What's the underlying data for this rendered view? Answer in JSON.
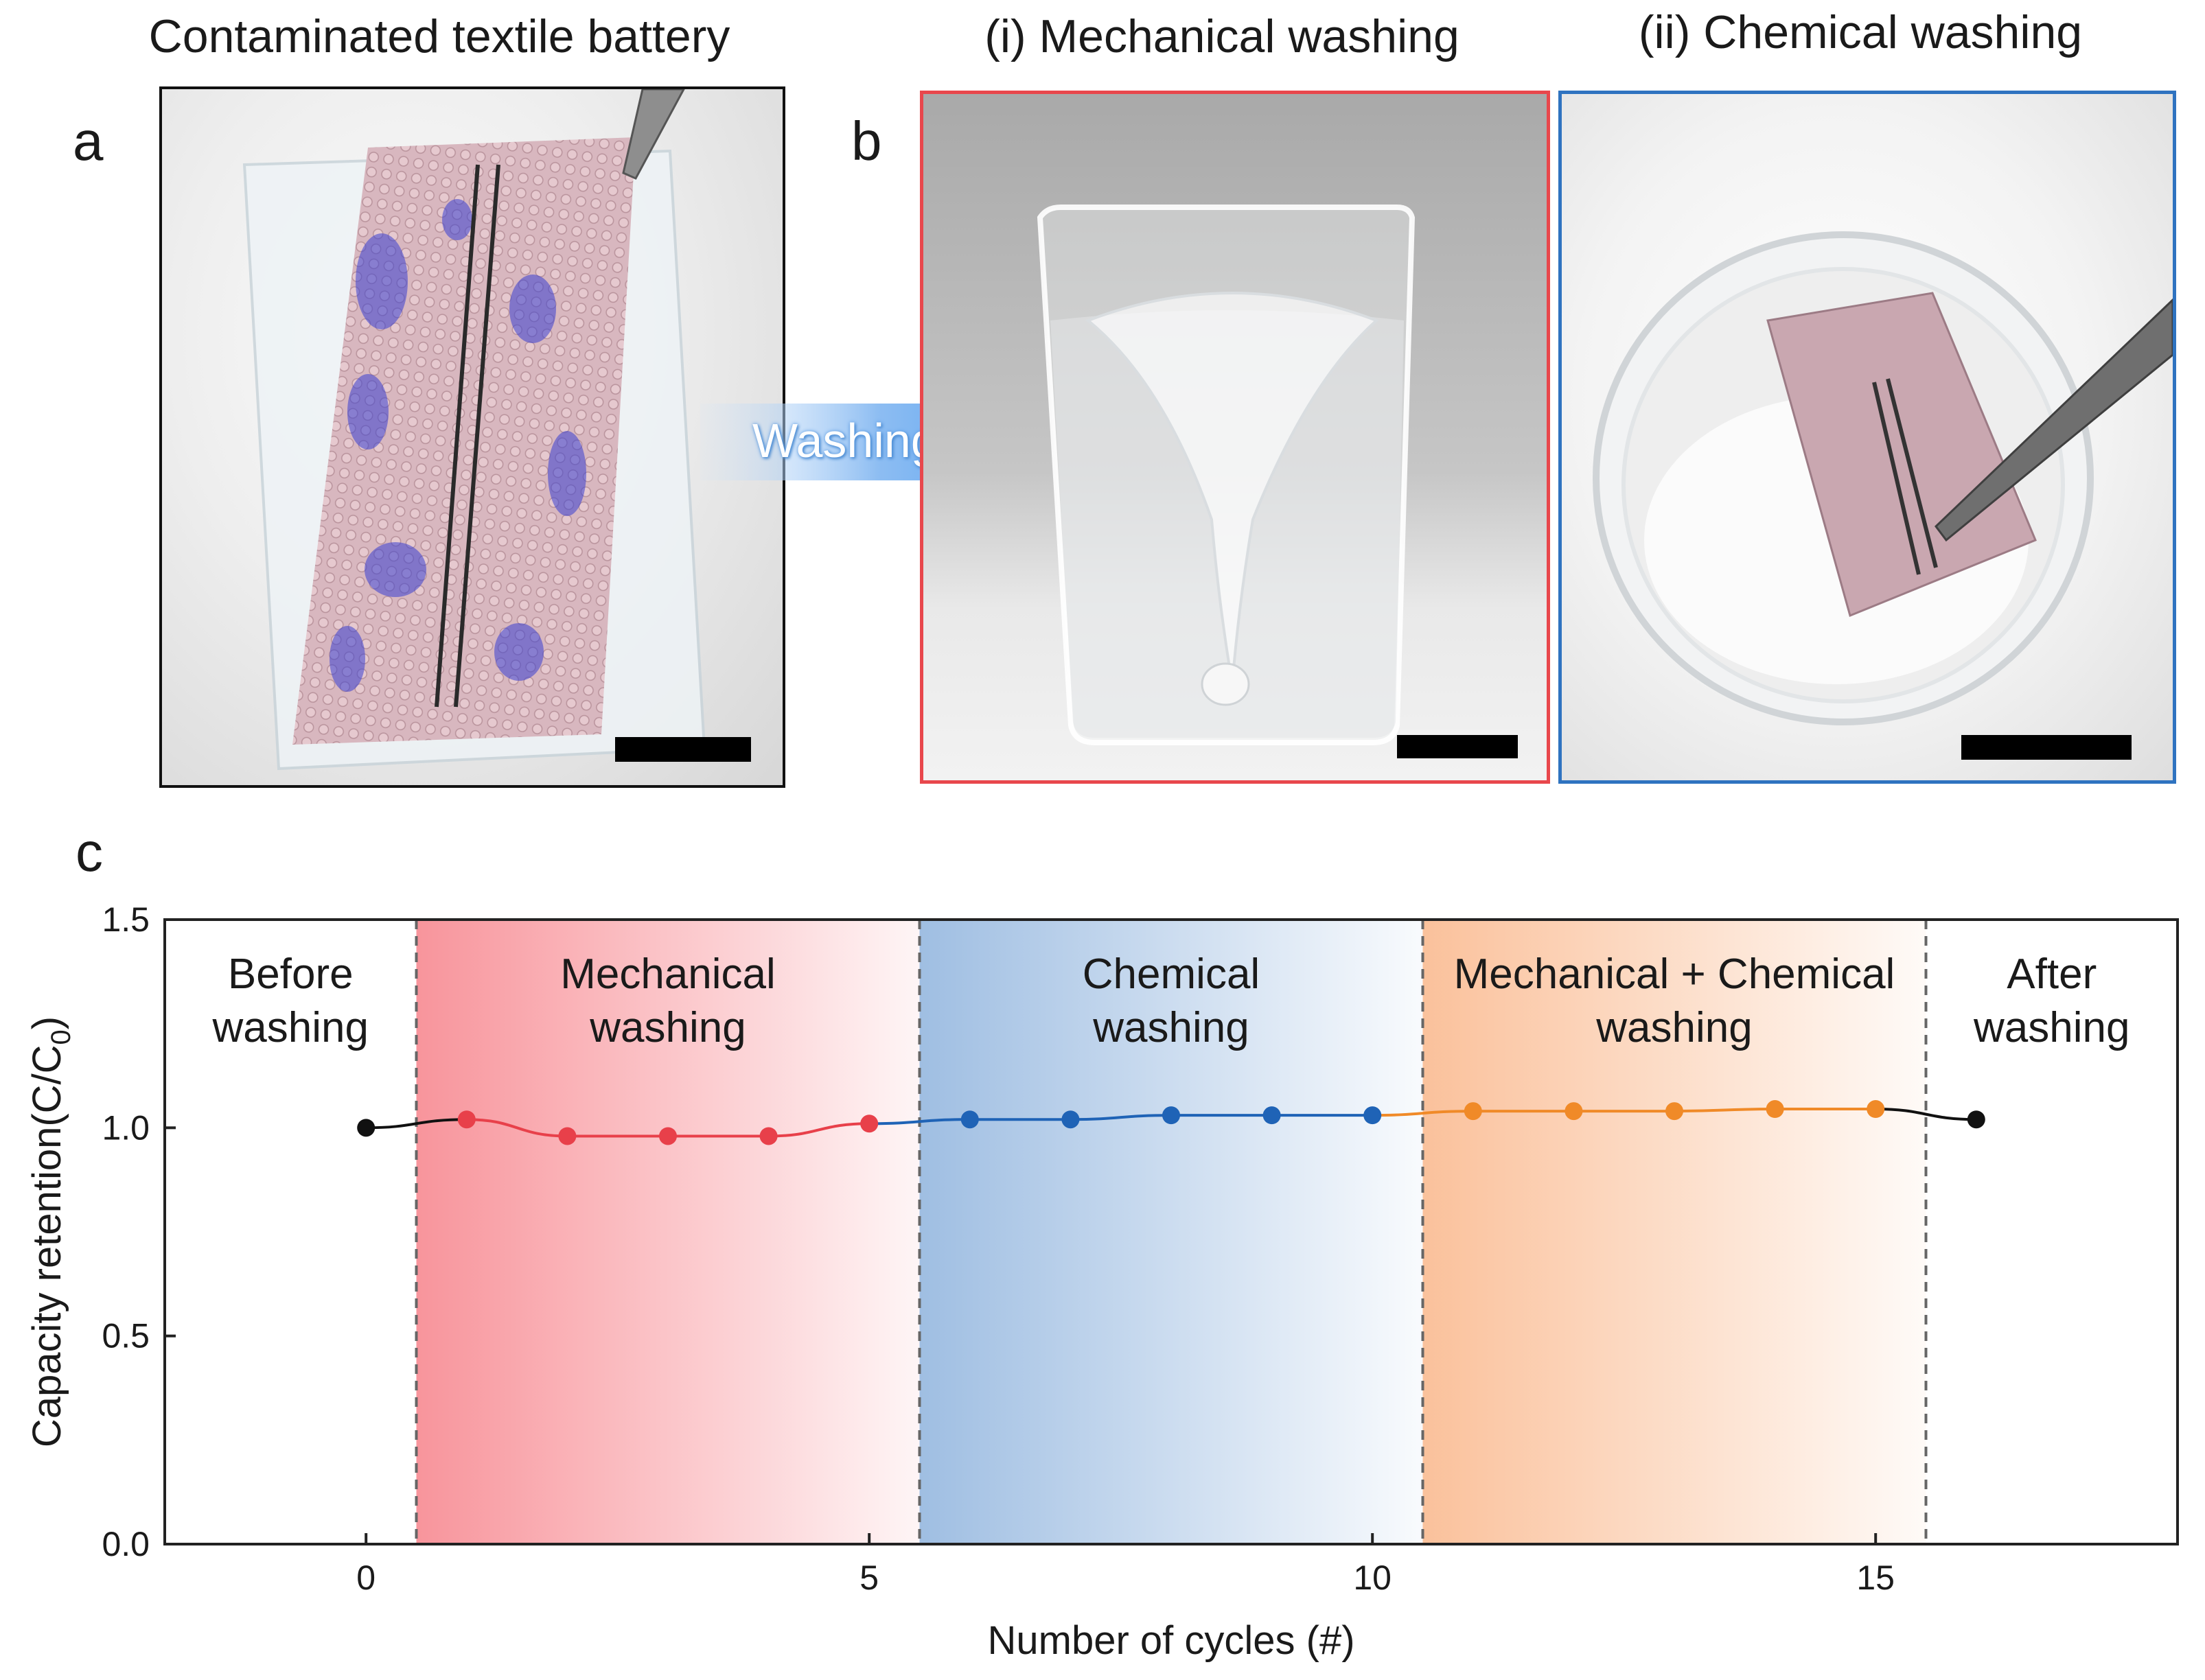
{
  "panel_a": {
    "letter": "a",
    "title": "Contaminated textile battery",
    "photo_alt": "textile battery with blue contamination on clear film"
  },
  "panel_b": {
    "letter": "b",
    "arrow_label": "Washing",
    "sub_i": {
      "title": "(i) Mechanical washing",
      "frame_color": "#e8474c"
    },
    "sub_ii": {
      "title": "(ii) Chemical washing",
      "frame_color": "#2f73c0"
    }
  },
  "panel_c": {
    "letter": "c"
  },
  "colors": {
    "black": "#111111",
    "mechanical": "#e8404a",
    "chemical": "#1f63b6",
    "combined": "#f08a28"
  },
  "chart_data": {
    "type": "line",
    "xlabel": "Number of cycles (#)",
    "ylabel": "Capacity retention(C/C",
    "ylabel_sub": "0",
    "ylabel_close": ")",
    "xlim": [
      -2,
      18
    ],
    "ylim": [
      0.0,
      1.5
    ],
    "xticks": [
      0,
      5,
      10,
      15
    ],
    "yticks": [
      "0.0",
      "0.5",
      "1.0",
      "1.5"
    ],
    "divider_x": [
      0.5,
      5.5,
      10.5,
      15.5
    ],
    "regions": [
      {
        "name": "before",
        "lines": [
          "Before",
          "washing"
        ],
        "x_center": -0.75
      },
      {
        "name": "mechanical",
        "lines": [
          "Mechanical",
          "washing"
        ],
        "x_center": 3.0,
        "from": 0.5,
        "to": 5.5,
        "color": "#f45b66"
      },
      {
        "name": "chemical",
        "lines": [
          "Chemical",
          "washing"
        ],
        "x_center": 8.0,
        "from": 5.5,
        "to": 10.5,
        "color": "#5f93cf"
      },
      {
        "name": "combined",
        "lines": [
          "Mechanical + Chemical",
          "washing"
        ],
        "x_center": 13.0,
        "from": 10.5,
        "to": 15.5,
        "color": "#f8a066"
      },
      {
        "name": "after",
        "lines": [
          "After",
          "washing"
        ],
        "x_center": 16.75
      }
    ],
    "series": [
      {
        "name": "Before washing",
        "color": "#111111",
        "x": [
          0
        ],
        "y": [
          1.0
        ]
      },
      {
        "name": "Mechanical washing",
        "color": "#e8404a",
        "x": [
          1,
          2,
          3,
          4,
          5
        ],
        "y": [
          1.02,
          0.98,
          0.98,
          0.98,
          1.01
        ]
      },
      {
        "name": "Chemical washing",
        "color": "#1f63b6",
        "x": [
          6,
          7,
          8,
          9,
          10
        ],
        "y": [
          1.02,
          1.02,
          1.03,
          1.03,
          1.03
        ]
      },
      {
        "name": "Mechanical + Chemical washing",
        "color": "#f08a28",
        "x": [
          11,
          12,
          13,
          14,
          15
        ],
        "y": [
          1.04,
          1.04,
          1.04,
          1.045,
          1.045
        ]
      },
      {
        "name": "After washing",
        "color": "#111111",
        "x": [
          16
        ],
        "y": [
          1.02
        ]
      }
    ]
  }
}
